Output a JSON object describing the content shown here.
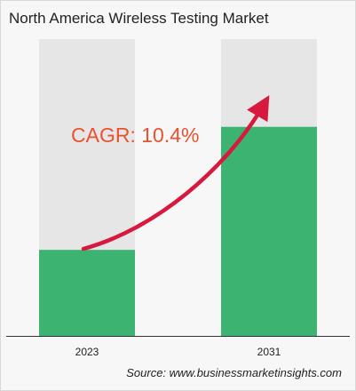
{
  "chart_data": {
    "type": "bar",
    "title": "North America Wireless Testing Market",
    "categories": [
      "2023",
      "2031"
    ],
    "values": [
      100,
      243
    ],
    "ylim": [
      0,
      345
    ],
    "xlabel": "",
    "ylabel": "",
    "grid": false,
    "legend": "none",
    "annotation": "CAGR: 10.4%",
    "source": "Source: www.businessmarketinsights.com",
    "colors": {
      "bar": "#3cb371",
      "bar_background": "#e6e6e6",
      "arrow": "#d7193f",
      "annotation": "#e8522e",
      "axis": "#333333"
    }
  }
}
